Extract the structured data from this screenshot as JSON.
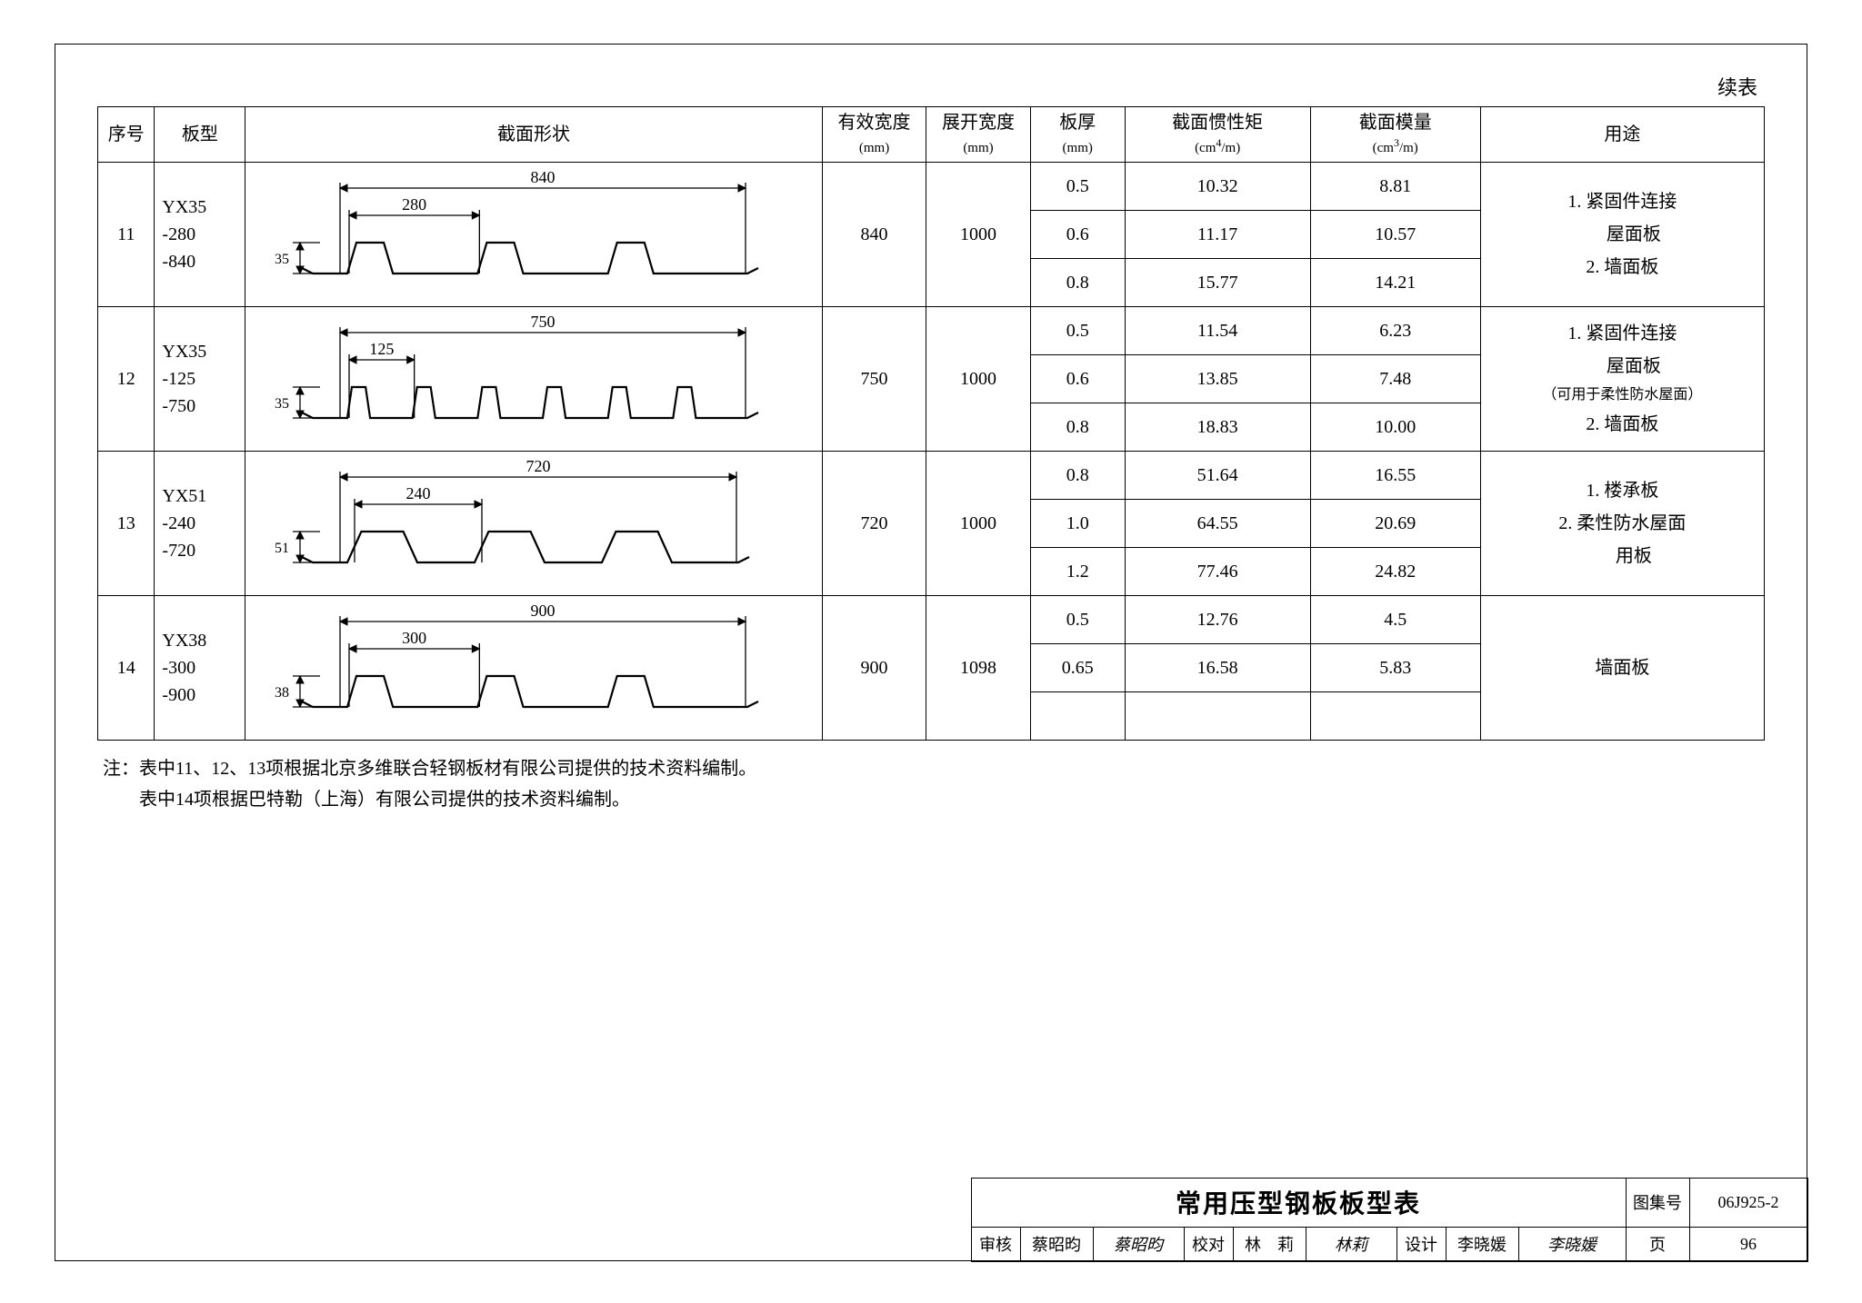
{
  "continued_label": "续表",
  "headers": {
    "seq": "序号",
    "model": "板型",
    "shape": "截面形状",
    "eff_width": "有效宽度",
    "eff_width_unit": "(mm)",
    "unf_width": "展开宽度",
    "unf_width_unit": "(mm)",
    "thickness": "板厚",
    "thickness_unit": "(mm)",
    "inertia": "截面惯性矩",
    "inertia_unit_pre": "(cm",
    "inertia_unit_sup": "4",
    "inertia_unit_post": "/m)",
    "modulus": "截面模量",
    "modulus_unit_pre": "(cm",
    "modulus_unit_sup": "3",
    "modulus_unit_post": "/m)",
    "usage": "用途"
  },
  "rows": [
    {
      "seq": "11",
      "model_l1": "YX35",
      "model_l2": "-280",
      "model_l3": "-840",
      "profile": {
        "overall": "840",
        "pitch": "280",
        "height": "35",
        "ribs": 3
      },
      "eff_width": "840",
      "unf_width": "1000",
      "sub": [
        {
          "th": "0.5",
          "inertia": "10.32",
          "modulus": "8.81"
        },
        {
          "th": "0.6",
          "inertia": "11.17",
          "modulus": "10.57"
        },
        {
          "th": "0.8",
          "inertia": "15.77",
          "modulus": "14.21"
        }
      ],
      "usage_lines": [
        "1. 紧固件连接",
        "　 屋面板",
        "2. 墙面板"
      ]
    },
    {
      "seq": "12",
      "model_l1": "YX35",
      "model_l2": "-125",
      "model_l3": "-750",
      "profile": {
        "overall": "750",
        "pitch": "125",
        "height": "35",
        "ribs": 6
      },
      "eff_width": "750",
      "unf_width": "1000",
      "sub": [
        {
          "th": "0.5",
          "inertia": "11.54",
          "modulus": "6.23"
        },
        {
          "th": "0.6",
          "inertia": "13.85",
          "modulus": "7.48"
        },
        {
          "th": "0.8",
          "inertia": "18.83",
          "modulus": "10.00"
        }
      ],
      "usage_lines": [
        "1. 紧固件连接",
        "　 屋面板"
      ],
      "usage_small": "（可用于柔性防水屋面）",
      "usage_lines2": [
        "2. 墙面板"
      ]
    },
    {
      "seq": "13",
      "model_l1": "YX51",
      "model_l2": "-240",
      "model_l3": "-720",
      "profile": {
        "overall": "720",
        "pitch": "240",
        "height": "51",
        "ribs": 3,
        "wide": true
      },
      "eff_width": "720",
      "unf_width": "1000",
      "sub": [
        {
          "th": "0.8",
          "inertia": "51.64",
          "modulus": "16.55"
        },
        {
          "th": "1.0",
          "inertia": "64.55",
          "modulus": "20.69"
        },
        {
          "th": "1.2",
          "inertia": "77.46",
          "modulus": "24.82"
        }
      ],
      "usage_lines": [
        "1. 楼承板",
        "2. 柔性防水屋面",
        "　 用板"
      ]
    },
    {
      "seq": "14",
      "model_l1": "YX38",
      "model_l2": "-300",
      "model_l3": "-900",
      "profile": {
        "overall": "900",
        "pitch": "300",
        "height": "38",
        "ribs": 3
      },
      "eff_width": "900",
      "unf_width": "1098",
      "sub": [
        {
          "th": "0.5",
          "inertia": "12.76",
          "modulus": "4.5"
        },
        {
          "th": "0.65",
          "inertia": "16.58",
          "modulus": "5.83"
        },
        {
          "th": "",
          "inertia": "",
          "modulus": ""
        }
      ],
      "usage_lines": [
        "墙面板"
      ],
      "usage_center": true
    }
  ],
  "note_label": "注：",
  "note_l1": "表中11、12、13项根据北京多维联合轻钢板材有限公司提供的技术资料编制。",
  "note_l2": "表中14项根据巴特勒（上海）有限公司提供的技术资料编制。",
  "title_block": {
    "title": "常用压型钢板板型表",
    "drawing_no_label": "图集号",
    "drawing_no": "06J925-2",
    "review_label": "审核",
    "review_name": "蔡昭昀",
    "review_sig": "蔡昭昀",
    "check_label": "校对",
    "check_name": "林　莉",
    "check_sig": "林莉",
    "design_label": "设计",
    "design_name": "李晓媛",
    "design_sig": "李晓媛",
    "page_label": "页",
    "page_no": "96"
  },
  "style": {
    "background": "#ffffff",
    "text_color": "#000000",
    "border_color": "#000000",
    "header_fontsize": 20,
    "body_fontsize": 20,
    "title_fontsize": 28
  }
}
